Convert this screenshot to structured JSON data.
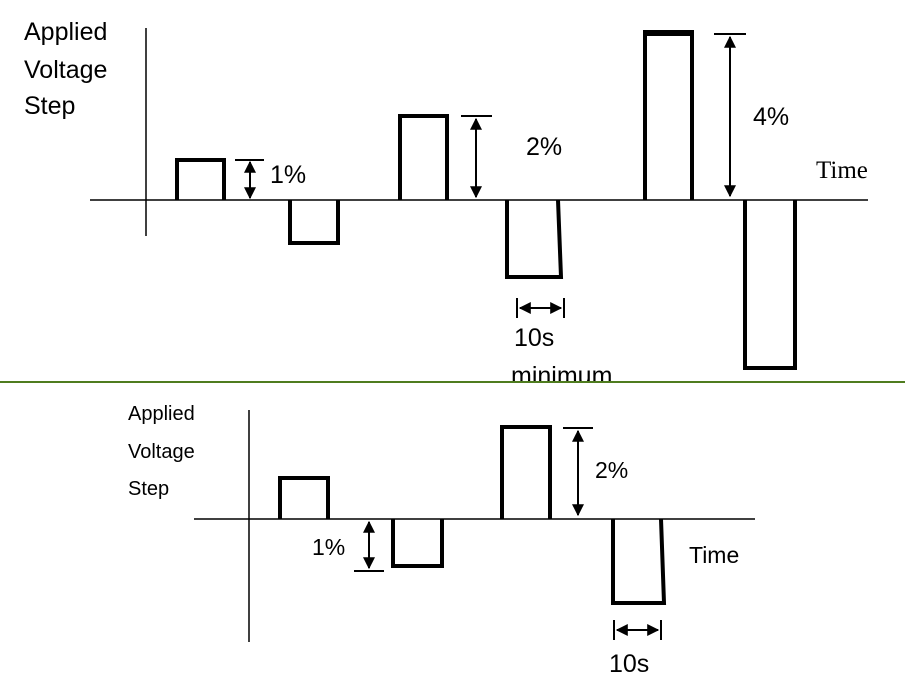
{
  "top": {
    "ylabel": [
      "Applied",
      "Voltage",
      "Step"
    ],
    "time_label": "Time",
    "step_labels": {
      "one": "1%",
      "two": "2%",
      "four": "4%"
    },
    "duration_label": [
      "10s",
      "minimum"
    ]
  },
  "bottom": {
    "ylabel": [
      "Applied",
      "Voltage",
      "Step"
    ],
    "time_label": "Time",
    "step_labels": {
      "one": "1%",
      "two": "2%"
    },
    "duration_label": "10s"
  },
  "colors": {
    "ink": "#000000",
    "divider": "#4f7c1f"
  }
}
